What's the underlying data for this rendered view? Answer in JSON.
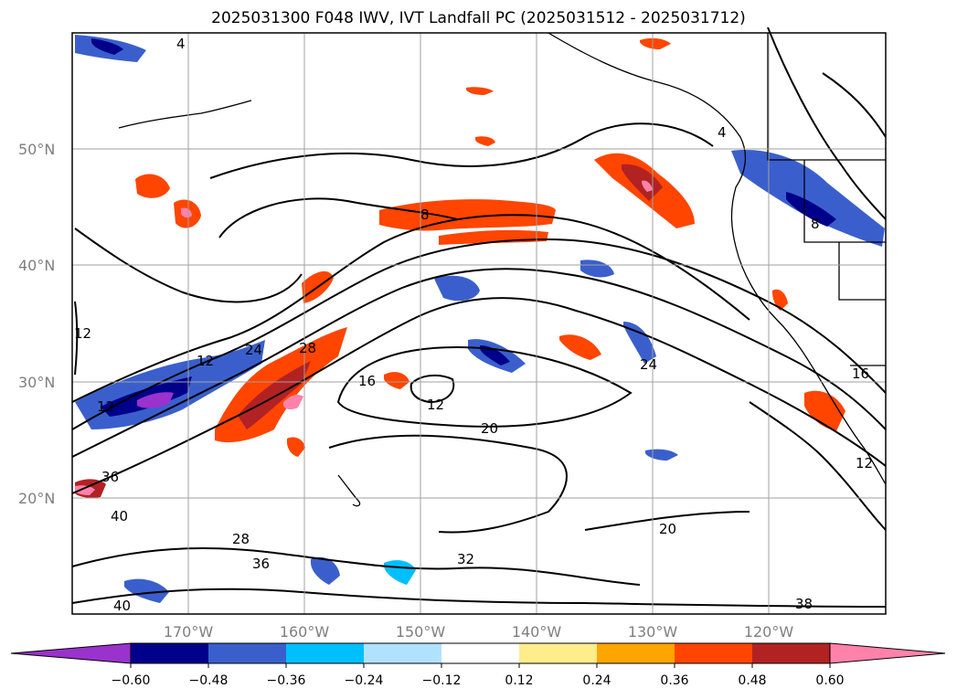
{
  "title": "2025031300 F048 IWV, IVT Landfall PC (2025031512 - 2025031712)",
  "lat_labels": [
    "50°N",
    "40°N",
    "30°N",
    "20°N"
  ],
  "lon_labels": [
    "170°W",
    "160°W",
    "150°W",
    "140°W",
    "130°W",
    "120°W"
  ],
  "colorbar": {
    "ticks": [
      "−0.60",
      "−0.48",
      "−0.36",
      "−0.24",
      "−0.12",
      "0.12",
      "0.24",
      "0.36",
      "0.48",
      "0.60"
    ],
    "colors": [
      "#9a32cd",
      "#00008b",
      "#3a5fcd",
      "#00bfff",
      "#b0e2ff",
      "#ffffff",
      "#ffec8b",
      "#ffa500",
      "#ff4500",
      "#b22222",
      "#ff82ab"
    ]
  },
  "contour_labels": [
    "4",
    "8",
    "12",
    "12",
    "16",
    "20",
    "24",
    "28",
    "32",
    "36",
    "40",
    "36",
    "28",
    "40",
    "12",
    "20",
    "38",
    "12",
    "8",
    "4",
    "24",
    "16",
    "12"
  ],
  "colors": {
    "land": "#ffffff",
    "coast": "#000000",
    "grid": "#a0a0a0"
  }
}
